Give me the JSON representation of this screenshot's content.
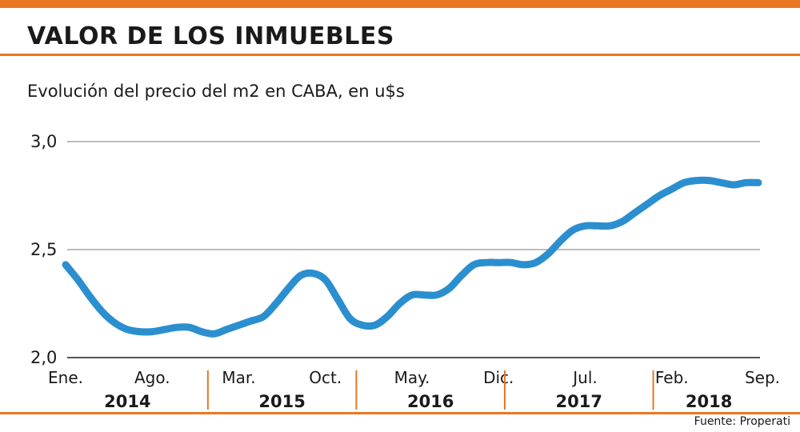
{
  "title": "VALOR DE LOS INMUEBLES",
  "subtitle": "Evolución del precio del m2 en CABA, en u$s",
  "source": "Fuente: Properati",
  "colors": {
    "accent": "#e87722",
    "line": "#2b8fcf",
    "grid": "#1a1a1a",
    "text": "#1a1a1a"
  },
  "chart_data": {
    "type": "line",
    "title": "VALOR DE LOS INMUEBLES",
    "subtitle": "Evolución del precio del m2 en CABA, en u$s",
    "ylim": [
      2.0,
      3.0
    ],
    "yticks": [
      {
        "value": 2.0,
        "label": "2,0"
      },
      {
        "value": 2.5,
        "label": "2,5"
      },
      {
        "value": 3.0,
        "label": "3,0"
      }
    ],
    "grid": true,
    "xlim": [
      0,
      56
    ],
    "x_tick_labels": [
      {
        "x": 0,
        "label": "Ene."
      },
      {
        "x": 7,
        "label": "Ago."
      },
      {
        "x": 14,
        "label": "Mar."
      },
      {
        "x": 21,
        "label": "Oct."
      },
      {
        "x": 28,
        "label": "May."
      },
      {
        "x": 35,
        "label": "Dic."
      },
      {
        "x": 42,
        "label": "Jul."
      },
      {
        "x": 49,
        "label": "Feb."
      },
      {
        "x": 56,
        "label": "Sep."
      }
    ],
    "years": [
      {
        "label": "2014",
        "center": 5
      },
      {
        "label": "2015",
        "center": 17.5
      },
      {
        "label": "2016",
        "center": 29.5
      },
      {
        "label": "2017",
        "center": 41.5
      },
      {
        "label": "2018",
        "center": 52
      }
    ],
    "year_separators": [
      11.5,
      23.5,
      35.5,
      47.5
    ],
    "series": [
      {
        "x": [
          0,
          1,
          2,
          3,
          4,
          5,
          6,
          7,
          8,
          9,
          10,
          11,
          12,
          13,
          14,
          15,
          16,
          17,
          18,
          19,
          20,
          21,
          22,
          23,
          24,
          25,
          26,
          27,
          28,
          29,
          30,
          31,
          32,
          33,
          34,
          35,
          36,
          37,
          38,
          39,
          40,
          41,
          42,
          43,
          44,
          45,
          46,
          47,
          48,
          49,
          50,
          51,
          52,
          53,
          54,
          55,
          56
        ],
        "y": [
          2.43,
          2.36,
          2.28,
          2.21,
          2.16,
          2.13,
          2.12,
          2.12,
          2.13,
          2.14,
          2.14,
          2.12,
          2.11,
          2.13,
          2.15,
          2.17,
          2.19,
          2.25,
          2.32,
          2.38,
          2.39,
          2.36,
          2.27,
          2.18,
          2.15,
          2.15,
          2.19,
          2.25,
          2.29,
          2.29,
          2.29,
          2.32,
          2.38,
          2.43,
          2.44,
          2.44,
          2.44,
          2.43,
          2.44,
          2.48,
          2.54,
          2.59,
          2.61,
          2.61,
          2.61,
          2.63,
          2.67,
          2.71,
          2.75,
          2.78,
          2.81,
          2.82,
          2.82,
          2.81,
          2.8,
          2.81,
          2.81
        ]
      }
    ]
  }
}
